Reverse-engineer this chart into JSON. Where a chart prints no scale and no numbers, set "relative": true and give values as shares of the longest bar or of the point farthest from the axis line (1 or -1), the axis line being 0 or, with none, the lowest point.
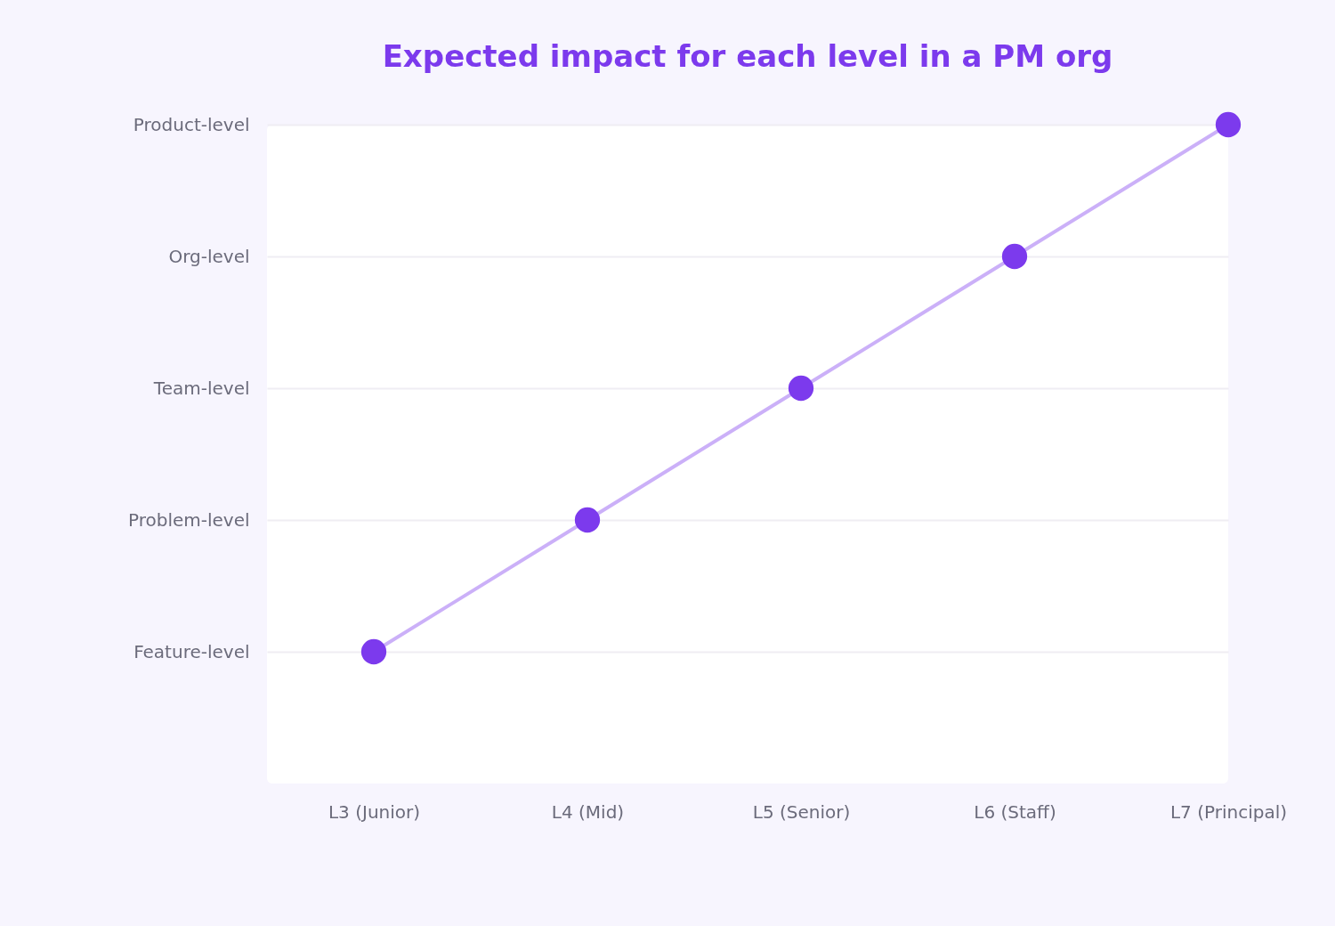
{
  "chart_data": {
    "type": "line",
    "title": "Expected impact for each level in a PM org",
    "categories": [
      "L3 (Junior)",
      "L4 (Mid)",
      "L5 (Senior)",
      "L6 (Staff)",
      "L7 (Principal)"
    ],
    "y_categories": [
      "Product-level",
      "Org-level",
      "Team-level",
      "Problem-level",
      "Feature-level"
    ],
    "relative": true,
    "series": [
      {
        "color": "#7c3aed",
        "values": [
          0.2,
          0.4,
          0.6,
          0.8,
          1
        ]
      }
    ],
    "grid": "y",
    "marker": "circle",
    "line_style": "solid"
  }
}
